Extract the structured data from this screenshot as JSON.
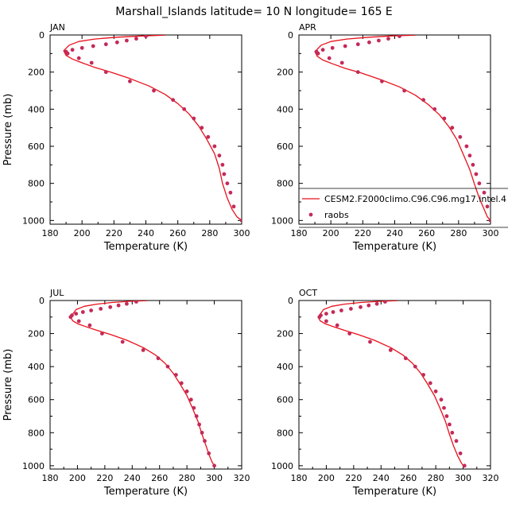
{
  "title": "Marshall_Islands  latitude= 10 N longitude= 165 E",
  "colors": {
    "model_line": "#e8101a",
    "raobs_marker": "#c42a58",
    "axis": "#000000"
  },
  "legend": {
    "model_label": "CESM2.F2000climo.C96.C96.mg17.intel.4",
    "obs_label": "raobs",
    "panel_index": 1,
    "placement": "bottom-right"
  },
  "chart_data": [
    {
      "type": "line",
      "title": "JAN",
      "xlabel": "Temperature (K)",
      "ylabel": "Pressure (mb)",
      "xlim": [
        180,
        300
      ],
      "ylim": [
        1020,
        0
      ],
      "xticks": [
        "180",
        "200",
        "220",
        "240",
        "260",
        "280",
        "300"
      ],
      "yticks": [
        "0",
        "200",
        "400",
        "600",
        "800",
        "1000"
      ],
      "series": [
        {
          "name": "CESM2.F2000climo.C96.C96.mg17.intel.4",
          "kind": "line",
          "x": [
            252,
            238,
            222,
            208,
            198,
            192,
            188.5,
            190,
            194,
            200,
            208,
            218,
            230,
            242,
            252,
            260,
            267,
            273,
            278,
            283,
            286,
            288,
            291,
            294,
            297,
            300
          ],
          "y": [
            1,
            5,
            12,
            22,
            35,
            55,
            85,
            110,
            130,
            150,
            175,
            200,
            235,
            275,
            320,
            370,
            425,
            490,
            560,
            640,
            720,
            800,
            880,
            940,
            980,
            1000
          ]
        },
        {
          "name": "raobs",
          "kind": "scatter",
          "x": [
            240,
            234,
            228,
            222,
            215,
            207,
            200,
            194,
            190,
            191,
            198,
            206,
            215,
            230,
            245,
            257,
            264,
            270,
            275,
            279,
            283,
            286,
            288,
            289,
            291,
            293,
            295,
            300
          ],
          "y": [
            7,
            20,
            30,
            40,
            50,
            60,
            70,
            80,
            90,
            100,
            125,
            150,
            200,
            250,
            300,
            350,
            400,
            450,
            500,
            550,
            600,
            650,
            700,
            750,
            800,
            850,
            925,
            1000
          ]
        }
      ]
    },
    {
      "type": "line",
      "title": "APR",
      "xlabel": "Temperature (K)",
      "ylabel": "",
      "xlim": [
        180,
        300
      ],
      "ylim": [
        1020,
        0
      ],
      "xticks": [
        "180",
        "200",
        "220",
        "240",
        "260",
        "280",
        "300"
      ],
      "yticks": [
        "0",
        "200",
        "400",
        "600",
        "800",
        "1000"
      ],
      "series": [
        {
          "name": "CESM2.F2000climo.C96.C96.mg17.intel.4",
          "kind": "line",
          "x": [
            253,
            238,
            224,
            210,
            200,
            194,
            190,
            191.5,
            195,
            201,
            209,
            219,
            231,
            243,
            253,
            261,
            268,
            274,
            279,
            283,
            287,
            290,
            293,
            296,
            298,
            300
          ],
          "y": [
            1,
            5,
            12,
            22,
            35,
            55,
            90,
            115,
            135,
            155,
            180,
            205,
            240,
            280,
            325,
            375,
            430,
            495,
            565,
            645,
            725,
            805,
            880,
            940,
            980,
            1000
          ]
        },
        {
          "name": "raobs",
          "kind": "scatter",
          "x": [
            243,
            236,
            230,
            224,
            217,
            209,
            201,
            195,
            191,
            192,
            199,
            207,
            217,
            232,
            246,
            258,
            265,
            271,
            276,
            281,
            285,
            287,
            289,
            291,
            293,
            296,
            298,
            300
          ],
          "y": [
            7,
            20,
            30,
            40,
            50,
            60,
            70,
            80,
            90,
            100,
            125,
            150,
            200,
            250,
            300,
            350,
            400,
            450,
            500,
            550,
            600,
            650,
            700,
            750,
            800,
            850,
            925,
            1000
          ]
        }
      ]
    },
    {
      "type": "line",
      "title": "JUL",
      "xlabel": "Temperature (K)",
      "ylabel": "Pressure (mb)",
      "xlim": [
        180,
        320
      ],
      "ylim": [
        1020,
        0
      ],
      "xticks": [
        "180",
        "200",
        "220",
        "240",
        "260",
        "280",
        "300",
        "320"
      ],
      "yticks": [
        "0",
        "200",
        "400",
        "600",
        "800",
        "1000"
      ],
      "series": [
        {
          "name": "CESM2.F2000climo.C96.C96.mg17.intel.4",
          "kind": "line",
          "x": [
            251,
            238,
            225,
            214,
            205,
            199,
            195,
            196.5,
            200,
            206,
            214,
            224,
            236,
            248,
            257,
            264,
            270,
            275,
            280,
            284,
            288,
            291,
            294,
            296.5,
            298.5,
            300
          ],
          "y": [
            1,
            5,
            12,
            22,
            35,
            55,
            100,
            122,
            140,
            158,
            180,
            205,
            240,
            285,
            330,
            380,
            440,
            505,
            575,
            650,
            730,
            810,
            880,
            940,
            980,
            1000
          ]
        },
        {
          "name": "raobs",
          "kind": "scatter",
          "x": [
            243,
            236,
            230,
            224,
            217,
            210,
            204,
            199,
            196,
            195,
            201,
            209,
            218,
            233,
            248,
            259,
            266,
            272,
            276,
            280,
            283,
            285,
            287,
            289,
            291,
            293,
            296,
            300
          ],
          "y": [
            7,
            20,
            30,
            40,
            50,
            60,
            70,
            80,
            90,
            100,
            125,
            150,
            200,
            250,
            300,
            350,
            400,
            450,
            500,
            550,
            600,
            650,
            700,
            750,
            800,
            850,
            925,
            1000
          ]
        }
      ]
    },
    {
      "type": "line",
      "title": "OCT",
      "xlabel": "Temperature (K)",
      "ylabel": "",
      "xlim": [
        180,
        320
      ],
      "ylim": [
        1020,
        0
      ],
      "xticks": [
        "180",
        "200",
        "220",
        "240",
        "260",
        "280",
        "300",
        "320"
      ],
      "yticks": [
        "0",
        "200",
        "400",
        "600",
        "800",
        "1000"
      ],
      "series": [
        {
          "name": "CESM2.F2000climo.C96.C96.mg17.intel.4",
          "kind": "line",
          "x": [
            252,
            239,
            225,
            213,
            204,
            198,
            194,
            195.5,
            199,
            205,
            213,
            223,
            235,
            247,
            256,
            263,
            269,
            274,
            279,
            283,
            287,
            290,
            293,
            296,
            298.5,
            300
          ],
          "y": [
            1,
            5,
            12,
            22,
            35,
            55,
            100,
            122,
            140,
            158,
            180,
            205,
            240,
            285,
            330,
            380,
            440,
            505,
            575,
            650,
            730,
            810,
            880,
            940,
            980,
            1000
          ]
        },
        {
          "name": "raobs",
          "kind": "scatter",
          "x": [
            243,
            237,
            231,
            225,
            218,
            211,
            205,
            200,
            196,
            195,
            200,
            208,
            217,
            232,
            247,
            258,
            265,
            271,
            276,
            280,
            284,
            286,
            288,
            290,
            292,
            295,
            298,
            301
          ],
          "y": [
            7,
            20,
            30,
            40,
            50,
            60,
            70,
            80,
            90,
            100,
            125,
            150,
            200,
            250,
            300,
            350,
            400,
            450,
            500,
            550,
            600,
            650,
            700,
            750,
            800,
            850,
            925,
            1000
          ]
        }
      ]
    }
  ]
}
